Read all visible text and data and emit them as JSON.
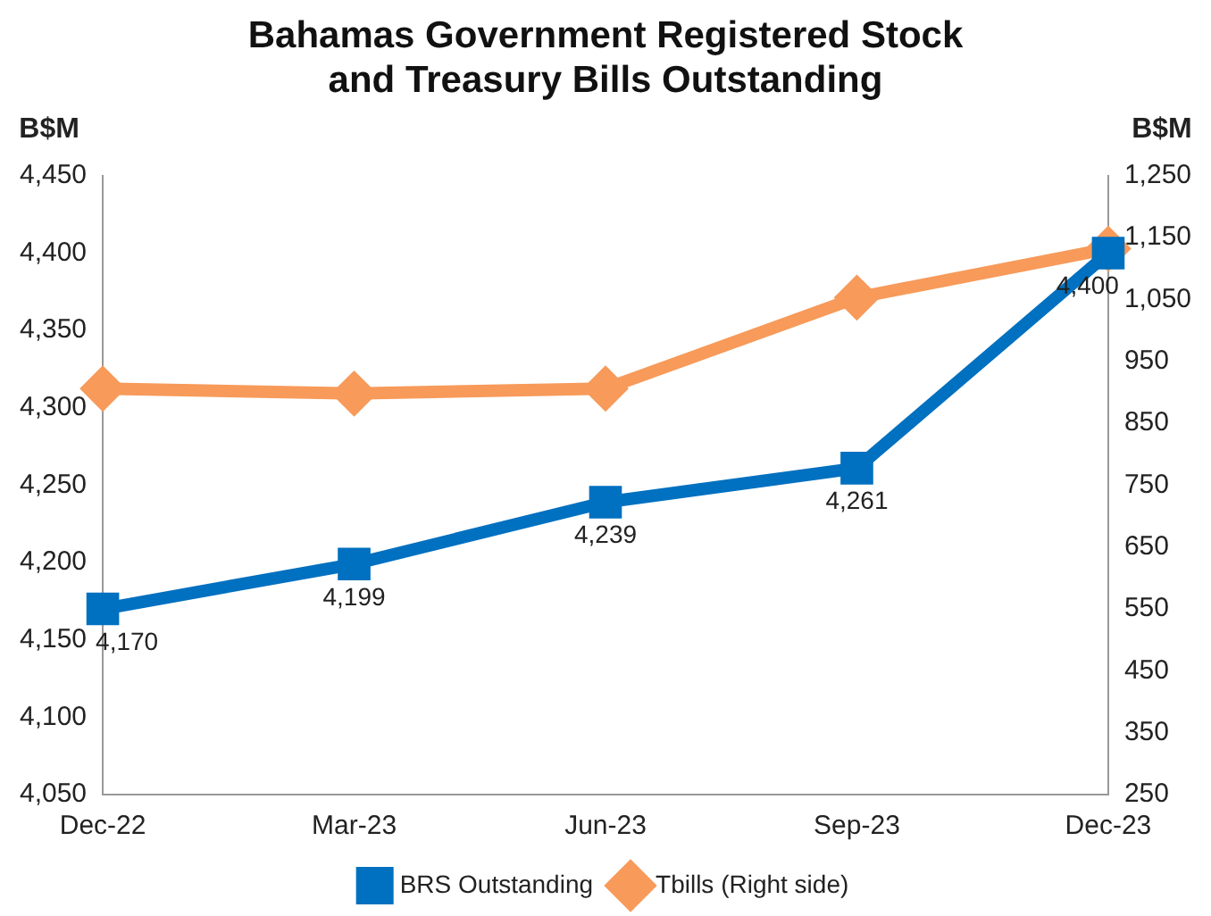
{
  "chart_data": {
    "type": "line",
    "title": "Bahamas Government Registered Stock and Treasury Bills Outstanding",
    "ylabel": "B$M",
    "y2label": "B$M",
    "categories": [
      "Dec-22",
      "Mar-23",
      "Jun-23",
      "Sep-23",
      "Dec-23"
    ],
    "series": [
      {
        "name": "BRS Outstanding",
        "color": "#0070c0",
        "values": [
          4170,
          4199,
          4239,
          4261,
          4400
        ],
        "value_labels": [
          "4,170",
          "4,199",
          "4,239",
          "4,261",
          "4,400"
        ],
        "marker": "square"
      },
      {
        "name": "Tbills (Right side)",
        "color": "#f79a5a",
        "values": [
          906,
          898,
          906,
          1053,
          1132
        ],
        "axis": "y2",
        "marker": "diamond"
      }
    ],
    "ylim": [
      4050,
      4450
    ],
    "yticks": [
      {
        "value": 4050,
        "label": "4,050"
      },
      {
        "value": 4100,
        "label": "4,100"
      },
      {
        "value": 4150,
        "label": "4,150"
      },
      {
        "value": 4200,
        "label": "4,200"
      },
      {
        "value": 4250,
        "label": "4,250"
      },
      {
        "value": 4300,
        "label": "4,300"
      },
      {
        "value": 4350,
        "label": "4,350"
      },
      {
        "value": 4400,
        "label": "4,400"
      },
      {
        "value": 4450,
        "label": "4,450"
      }
    ],
    "y2lim": [
      250,
      1250
    ],
    "y2ticks": [
      250,
      350,
      450,
      550,
      650,
      750,
      850,
      950,
      {
        "value": 1050,
        "label": "1,050"
      },
      {
        "value": 1150,
        "label": "1,150"
      },
      {
        "value": 1250,
        "label": "1,250"
      }
    ],
    "grid": false,
    "legend": "bottom"
  }
}
